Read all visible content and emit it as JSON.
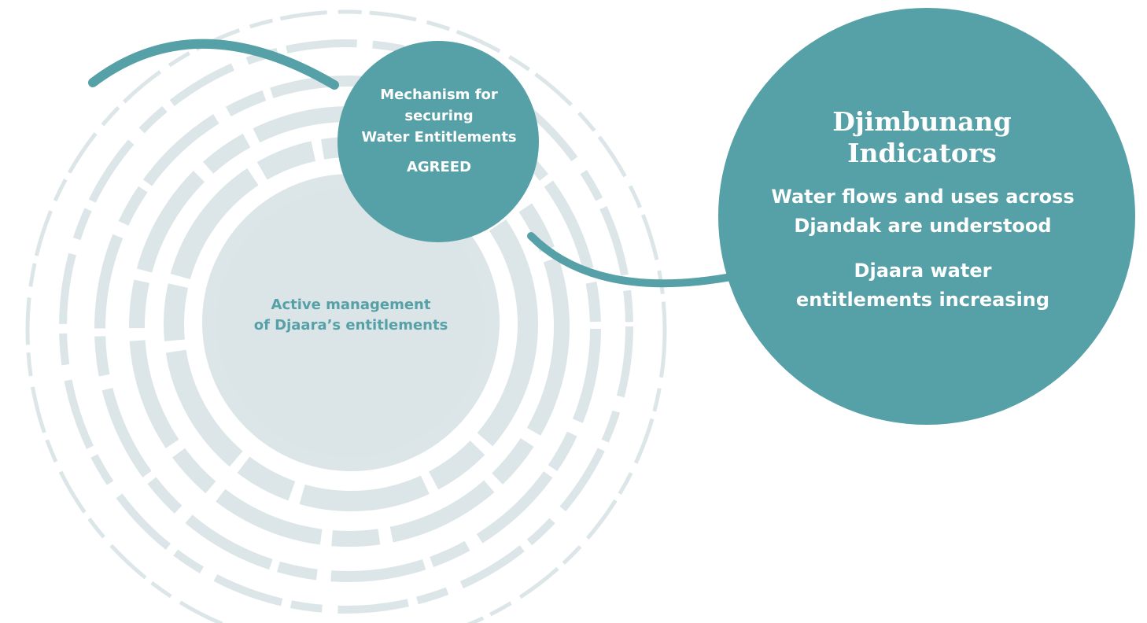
{
  "swirl": {
    "label": [
      "Active management",
      "of Djaara’s entitlements"
    ]
  },
  "mechanism": {
    "lines": [
      "Mechanism for",
      "securing",
      "Water Entitlements"
    ],
    "status": "AGREED"
  },
  "indicators": {
    "title": [
      "Djimbunang",
      "Indicators"
    ],
    "items": [
      [
        "Water flows and uses across",
        "Djandak are understood"
      ],
      [
        "Djaara water",
        "entitlements increasing"
      ]
    ]
  }
}
